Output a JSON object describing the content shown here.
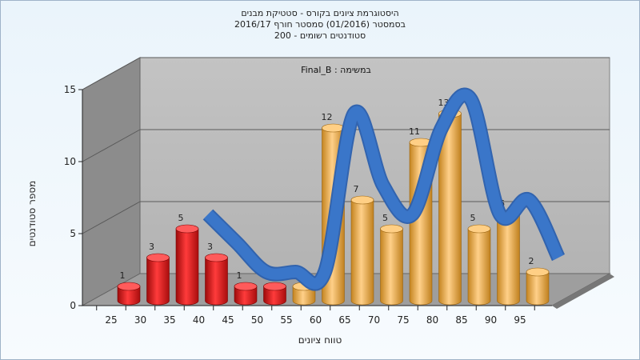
{
  "chart_data": {
    "type": "bar",
    "title_lines": [
      "היסטוגרמת ציונים בקורס - סטטיקת מבנים",
      "בסמסטר  (01/2016)  סמסטר חורף  2016/17",
      "סטודנטים רשומים - 200"
    ],
    "annotation": "במשימה : Final_B",
    "xlabel": "טווח ציונים",
    "ylabel": "מספר סטודנטים",
    "categories": [
      "25",
      "30",
      "35",
      "40",
      "45",
      "50",
      "55",
      "60",
      "65",
      "70",
      "75",
      "80",
      "85",
      "90",
      "95"
    ],
    "values": [
      1,
      3,
      5,
      3,
      1,
      1,
      1,
      12,
      7,
      5,
      11,
      13,
      5,
      6,
      2
    ],
    "value_labels": [
      "1",
      "3",
      "5",
      "3",
      "1",
      "1",
      "1",
      "12",
      "7",
      "5",
      "11",
      "13",
      "5",
      "6",
      "2"
    ],
    "bar_colors": [
      "red",
      "red",
      "red",
      "red",
      "red",
      "red",
      "orange",
      "orange",
      "orange",
      "orange",
      "orange",
      "orange",
      "orange",
      "orange",
      "orange"
    ],
    "ylim": [
      0,
      15
    ],
    "yticks": [
      0,
      5,
      10,
      15
    ],
    "series_curve_color": "#3a76c9",
    "grid": true,
    "legend": "none"
  }
}
